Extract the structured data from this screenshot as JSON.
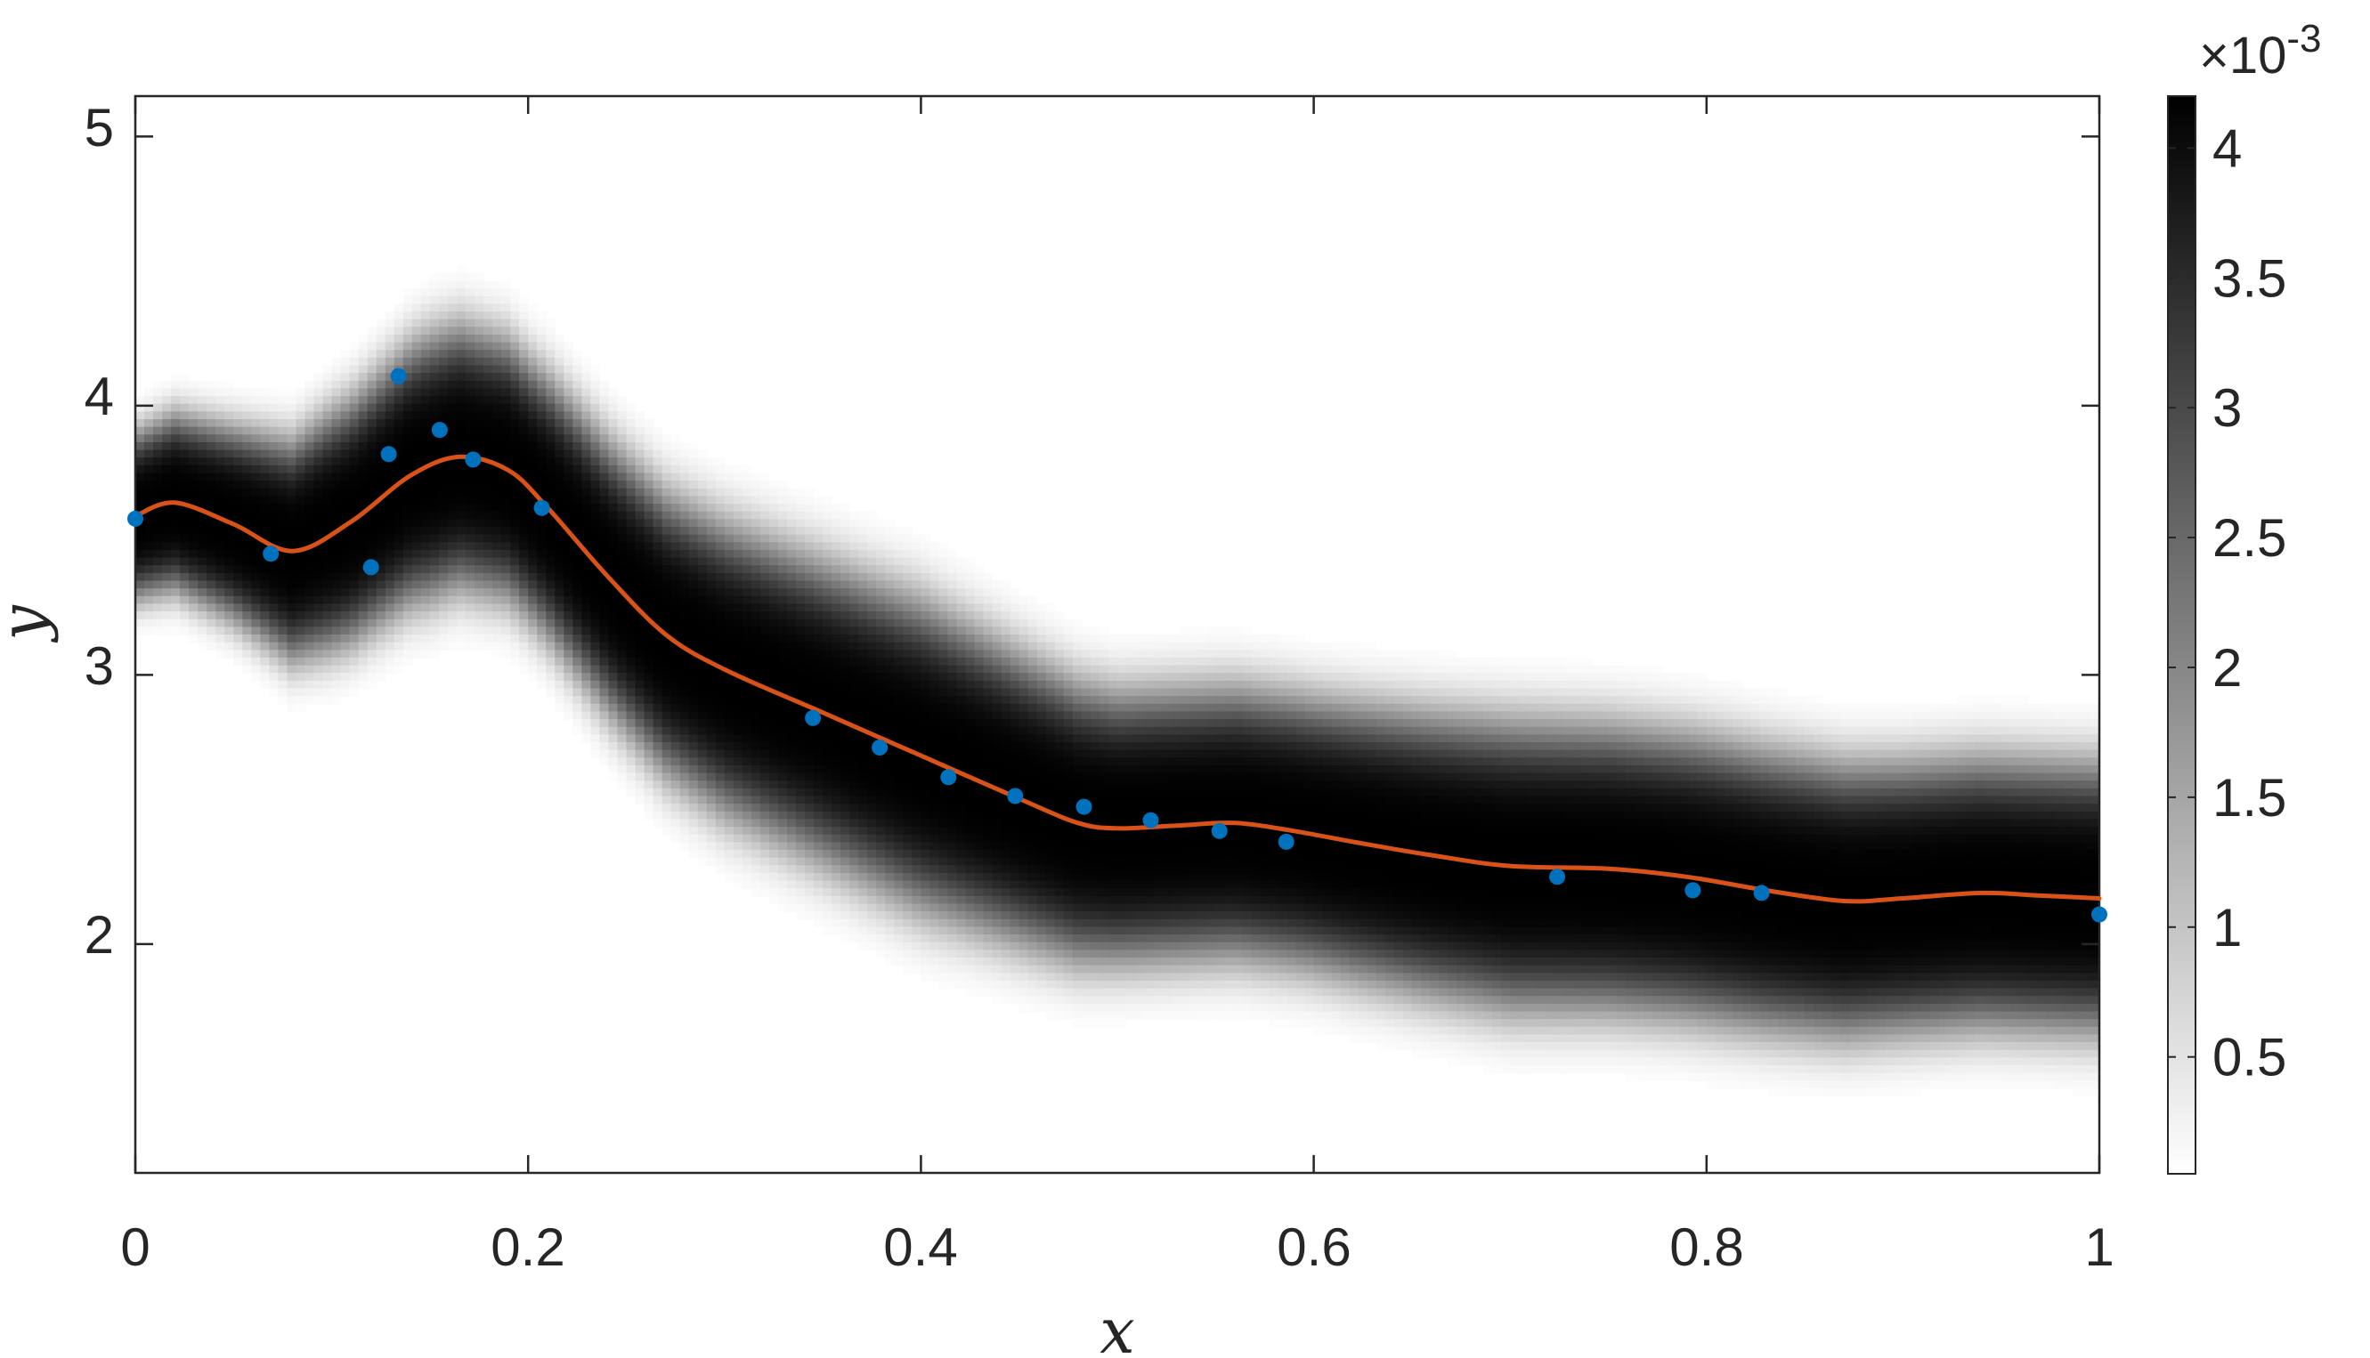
{
  "chart_data": {
    "type": "heatmap",
    "title": "",
    "xlabel": "x",
    "ylabel": "y",
    "xlim": [
      0,
      1
    ],
    "ylim": [
      1.15,
      5.15
    ],
    "xticks": [
      0,
      0.2,
      0.4,
      0.6,
      0.8,
      1
    ],
    "xtick_labels": [
      "0",
      "0.2",
      "0.4",
      "0.6",
      "0.8",
      "1"
    ],
    "yticks": [
      2,
      3,
      4,
      5
    ],
    "ytick_labels": [
      "2",
      "3",
      "4",
      "5"
    ],
    "grid": false,
    "colormap": "gray (white = low, black = high)",
    "colorbar": {
      "range": [
        5e-05,
        0.0042
      ],
      "ticks": [
        0.5,
        1,
        1.5,
        2,
        2.5,
        3,
        3.5,
        4
      ],
      "tick_labels": [
        "0.5",
        "1",
        "1.5",
        "2",
        "2.5",
        "3",
        "3.5",
        "4"
      ],
      "multiplier": "×10",
      "exponent": "-3"
    },
    "density_sigma_profile": {
      "x": [
        0,
        0.05,
        0.1,
        0.15,
        0.2,
        0.3,
        0.4,
        0.5,
        0.6,
        0.7,
        0.8,
        0.9,
        1
      ],
      "sigma": [
        0.26,
        0.3,
        0.37,
        0.41,
        0.4,
        0.45,
        0.48,
        0.42,
        0.42,
        0.45,
        0.44,
        0.42,
        0.42
      ]
    },
    "series": [
      {
        "kind": "line",
        "color": "#d95319",
        "x": [
          0,
          0.02,
          0.05,
          0.08,
          0.11,
          0.14,
          0.165,
          0.19,
          0.21,
          0.24,
          0.27,
          0.3,
          0.35,
          0.4,
          0.45,
          0.48,
          0.5,
          0.53,
          0.56,
          0.59,
          0.62,
          0.66,
          0.7,
          0.75,
          0.79,
          0.83,
          0.87,
          0.9,
          0.94,
          0.97,
          1
        ],
        "y": [
          3.59,
          3.64,
          3.56,
          3.46,
          3.57,
          3.74,
          3.81,
          3.76,
          3.62,
          3.37,
          3.15,
          3.02,
          2.86,
          2.7,
          2.54,
          2.45,
          2.43,
          2.44,
          2.45,
          2.42,
          2.38,
          2.33,
          2.29,
          2.28,
          2.25,
          2.2,
          2.16,
          2.17,
          2.19,
          2.18,
          2.17
        ]
      },
      {
        "kind": "scatter",
        "color": "#0072bd",
        "x": [
          0,
          0.069,
          0.12,
          0.129,
          0.134,
          0.155,
          0.172,
          0.207,
          0.345,
          0.379,
          0.414,
          0.448,
          0.483,
          0.517,
          0.552,
          0.586,
          0.724,
          0.793,
          0.828,
          1
        ],
        "y": [
          3.58,
          3.45,
          3.4,
          3.82,
          4.11,
          3.91,
          3.8,
          3.62,
          2.84,
          2.73,
          2.62,
          2.55,
          2.51,
          2.46,
          2.42,
          2.38,
          2.25,
          2.2,
          2.19,
          2.11
        ]
      }
    ]
  }
}
